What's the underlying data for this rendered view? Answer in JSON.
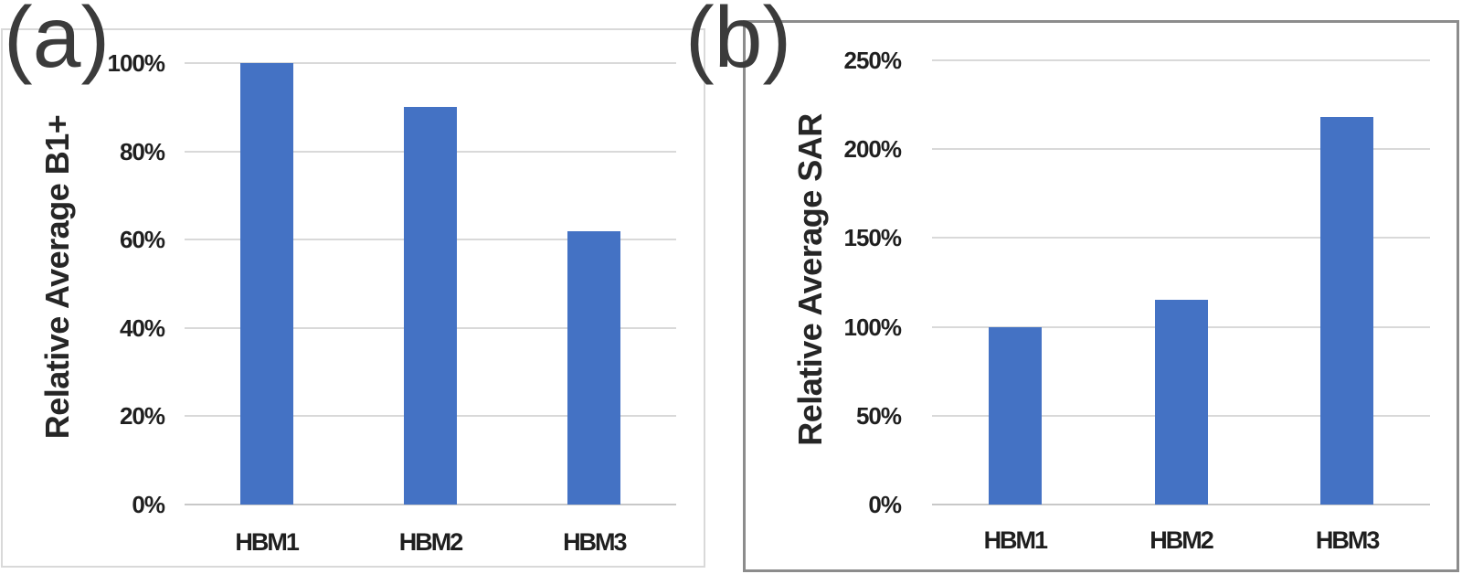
{
  "colors": {
    "bar": "#4472C4",
    "gridline": "#D9D9D9",
    "axis_line": "#C8C8C8",
    "panel_a_border": "#D9D9D9",
    "panel_b_border": "#8C8C8C",
    "tick_text": "#1F1F1F",
    "fig_label_text": "#3B3B3B"
  },
  "chart_data": [
    {
      "id": "a",
      "panel_label": "(a)",
      "type": "bar",
      "title": "",
      "xlabel": "",
      "ylabel": "Relative Average B1+",
      "categories": [
        "HBM1",
        "HBM2",
        "HBM3"
      ],
      "values": [
        100,
        90,
        62
      ],
      "unit": "%",
      "ylim": [
        0,
        100
      ],
      "ytick_step": 20,
      "ytick_labels": [
        "0%",
        "20%",
        "40%",
        "60%",
        "80%",
        "100%"
      ],
      "grid": true,
      "legend": "none"
    },
    {
      "id": "b",
      "panel_label": "(b)",
      "type": "bar",
      "title": "",
      "xlabel": "",
      "ylabel": "Relative Average SAR",
      "categories": [
        "HBM1",
        "HBM2",
        "HBM3"
      ],
      "values": [
        100,
        115,
        218
      ],
      "unit": "%",
      "ylim": [
        0,
        250
      ],
      "ytick_step": 50,
      "ytick_labels": [
        "0%",
        "50%",
        "100%",
        "150%",
        "200%",
        "250%"
      ],
      "grid": true,
      "legend": "none"
    }
  ]
}
